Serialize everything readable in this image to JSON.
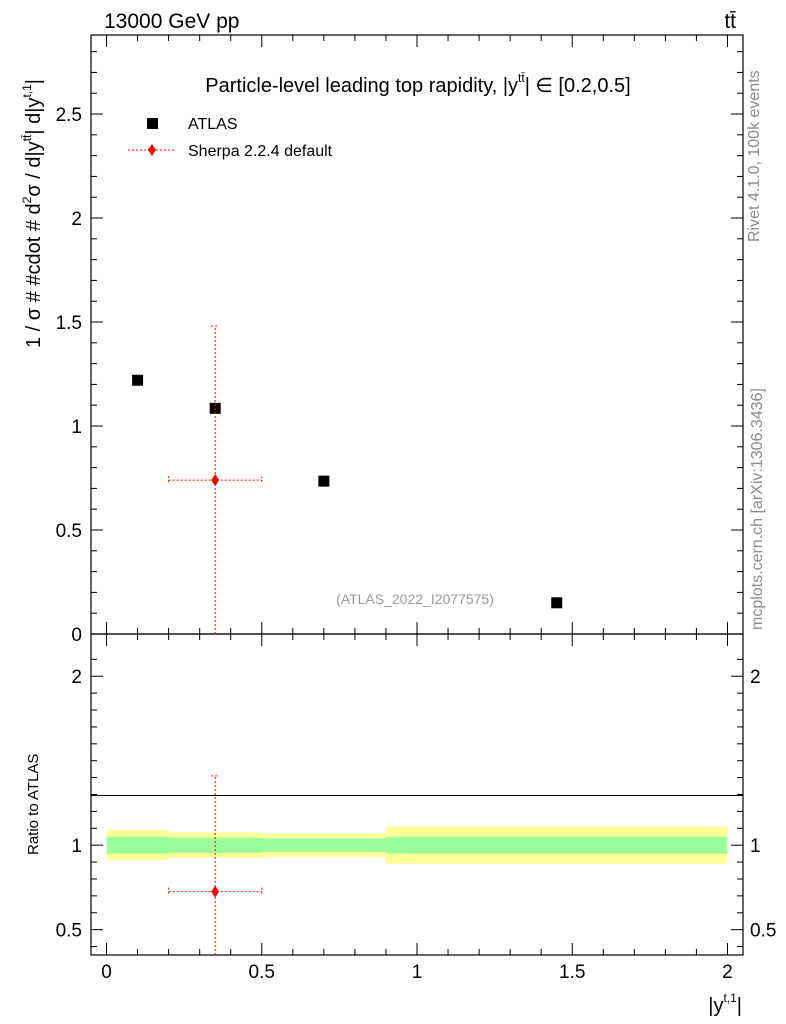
{
  "header": {
    "energy_label": "13000 GeV pp",
    "process_label": "tt̄"
  },
  "side_labels": {
    "rivet": "Rivet 4.1.0,  100k events",
    "mcplots": "mcplots.cern.ch [arXiv:1306.3436]"
  },
  "chart_data": {
    "type": "scatter",
    "title": "Particle-level leading top rapidity, |y^{tt̄}| ∈ [0.2,0.5]",
    "title_main": "Particle-level leading top rapidity, |",
    "title_y": "y",
    "title_sup": "tt̄",
    "title_tail": "| ∈ [0.2,0.5]",
    "analysis_id": "(ATLAS_2022_I2077575)",
    "xlabel": "|y",
    "xlabel_sup": "t,1",
    "xlabel_tail": "|",
    "ylabel": "1 / σ # #cdot # d²σ / d|y^{tt̄}| d|y^{t,1}|",
    "ylabel_parts": [
      "1 / σ # #cdot # d",
      "2",
      "σ / d|y",
      "tt̄",
      "| d|y",
      "t,1",
      "|"
    ],
    "ratio_ylabel": "Ratio to ATLAS",
    "xlim": [
      -0.05,
      2.05
    ],
    "ylim_main": [
      0,
      2.88
    ],
    "ylim_ratio": [
      0.35,
      2.25
    ],
    "x_ticks": [
      "0",
      "0.5",
      "1",
      "1.5",
      "2"
    ],
    "x_tick_values": [
      0,
      0.5,
      1,
      1.5,
      2
    ],
    "y_ticks_main": [
      "0",
      "0.5",
      "1",
      "1.5",
      "2",
      "2.5"
    ],
    "y_tick_values_main": [
      0,
      0.5,
      1,
      1.5,
      2,
      2.5
    ],
    "y_ticks_ratio": [
      "0.5",
      "1",
      "2"
    ],
    "y_tick_values_ratio": [
      0.5,
      1,
      2
    ],
    "legend": {
      "position": "top-left",
      "entries": [
        "ATLAS",
        "Sherpa 2.2.4 default"
      ]
    },
    "series": [
      {
        "name": "ATLAS",
        "marker": "square",
        "color": "#000000",
        "x": [
          0.1,
          0.35,
          0.7,
          1.45
        ],
        "y": [
          1.22,
          1.085,
          0.735,
          0.15
        ],
        "bins": [
          [
            0.0,
            0.2
          ],
          [
            0.2,
            0.5
          ],
          [
            0.5,
            0.9
          ],
          [
            0.9,
            2.0
          ]
        ],
        "ratio_band_inner": [
          [
            0.95,
            1.05
          ],
          [
            0.955,
            1.045
          ],
          [
            0.96,
            1.04
          ],
          [
            0.95,
            1.05
          ]
        ],
        "ratio_band_outer": [
          [
            0.91,
            1.09
          ],
          [
            0.925,
            1.075
          ],
          [
            0.93,
            1.07
          ],
          [
            0.89,
            1.11
          ]
        ]
      },
      {
        "name": "Sherpa 2.2.4 default",
        "marker": "diamond",
        "color": "#ff0000",
        "x": [
          0.35
        ],
        "y": [
          0.74
        ],
        "xerr": [
          [
            0.2,
            0.5
          ]
        ],
        "yerr": [
          [
            0.0,
            1.48
          ]
        ],
        "ratio": [
          0.725
        ],
        "ratio_err": [
          [
            0.0,
            1.41
          ]
        ]
      }
    ],
    "band_colors": {
      "inner": "#99ff99",
      "outer": "#ffff99"
    }
  }
}
